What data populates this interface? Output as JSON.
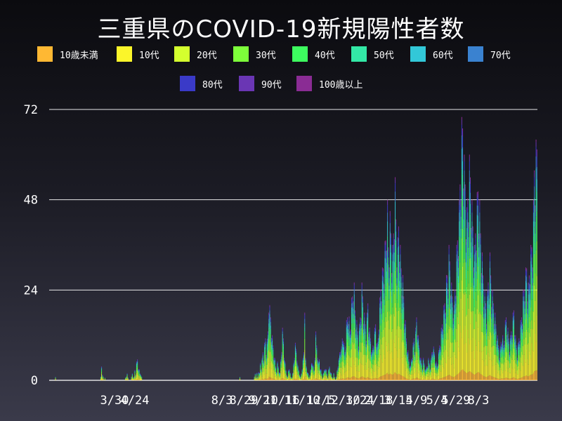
{
  "title": "三重県のCOVID-19新規陽性者数",
  "chart_data": {
    "type": "bar",
    "stacked": true,
    "title": "三重県のCOVID-19新規陽性者数",
    "xlabel": "",
    "ylabel": "",
    "ylim": [
      0,
      72
    ],
    "yticks": [
      0,
      24,
      48,
      72
    ],
    "grid": "horizontal",
    "legend_position": "top",
    "x_ticks": [
      "3/30",
      "4/24",
      "8/3",
      "8/29",
      "9/21",
      "10/16",
      "11/10",
      "12/5",
      "12/30",
      "1/24",
      "2/18",
      "3/15",
      "4/9",
      "5/4",
      "5/29",
      "8/3"
    ],
    "series": [
      {
        "name": "10歳未満",
        "color": "#ffb833"
      },
      {
        "name": "10代",
        "color": "#fbf52a"
      },
      {
        "name": "20代",
        "color": "#d4ff2e"
      },
      {
        "name": "30代",
        "color": "#7dff3a"
      },
      {
        "name": "40代",
        "color": "#3dfc5f"
      },
      {
        "name": "50代",
        "color": "#33e8a6"
      },
      {
        "name": "60代",
        "color": "#32c8d8"
      },
      {
        "name": "70代",
        "color": "#3a82d0"
      },
      {
        "name": "80代",
        "color": "#3a3ac8"
      },
      {
        "name": "90代",
        "color": "#6a36b4"
      },
      {
        "name": "100歳以上",
        "color": "#8a2c94"
      }
    ],
    "daily_totals": [
      0,
      0,
      0,
      0,
      0,
      0,
      0,
      1,
      0,
      0,
      0,
      0,
      0,
      0,
      0,
      0,
      0,
      0,
      0,
      0,
      0,
      0,
      0,
      0,
      0,
      0,
      0,
      0,
      0,
      0,
      0,
      0,
      0,
      0,
      0,
      0,
      0,
      0,
      0,
      0,
      0,
      0,
      0,
      0,
      0,
      0,
      0,
      0,
      0,
      0,
      0,
      0,
      0,
      0,
      0,
      0,
      0,
      0,
      0,
      0,
      1,
      4,
      2,
      1,
      0,
      1,
      0,
      0,
      0,
      0,
      0,
      0,
      0,
      0,
      0,
      0,
      0,
      0,
      0,
      0,
      0,
      0,
      0,
      0,
      0,
      0,
      0,
      0,
      0,
      1,
      1,
      2,
      1,
      0,
      0,
      0,
      1,
      2,
      1,
      1,
      3,
      2,
      5,
      6,
      4,
      3,
      2,
      2,
      1,
      0,
      0,
      0,
      0,
      0,
      0,
      0,
      0,
      0,
      0,
      0,
      0,
      0,
      0,
      0,
      0,
      0,
      0,
      0,
      0,
      0,
      0,
      0,
      0,
      0,
      0,
      0,
      0,
      0,
      0,
      0,
      0,
      0,
      0,
      0,
      0,
      0,
      0,
      0,
      0,
      0,
      0,
      0,
      0,
      0,
      0,
      0,
      0,
      0,
      0,
      0,
      0,
      0,
      0,
      0,
      0,
      0,
      0,
      0,
      0,
      0,
      0,
      0,
      0,
      0,
      0,
      0,
      0,
      0,
      0,
      0,
      0,
      0,
      0,
      0,
      0,
      0,
      0,
      0,
      0,
      0,
      0,
      0,
      0,
      0,
      0,
      0,
      0,
      0,
      0,
      0,
      0,
      0,
      0,
      0,
      0,
      0,
      0,
      0,
      0,
      0,
      0,
      0,
      0,
      0,
      0,
      0,
      0,
      0,
      0,
      0,
      0,
      0,
      0,
      1,
      0,
      0,
      0,
      0,
      0,
      0,
      0,
      0,
      0,
      0,
      0,
      0,
      0,
      0,
      0,
      0,
      1,
      2,
      1,
      2,
      1,
      3,
      2,
      5,
      4,
      6,
      8,
      7,
      10,
      12,
      9,
      11,
      14,
      24,
      20,
      18,
      15,
      12,
      10,
      8,
      6,
      4,
      3,
      5,
      4,
      3,
      2,
      6,
      10,
      14,
      12,
      8,
      5,
      3,
      2,
      1,
      3,
      4,
      2,
      1,
      1,
      2,
      5,
      8,
      10,
      9,
      7,
      4,
      3,
      2,
      1,
      2,
      4,
      6,
      8,
      24,
      6,
      4,
      3,
      2,
      1,
      2,
      3,
      5,
      6,
      4,
      3,
      8,
      13,
      10,
      8,
      5,
      6,
      4,
      3,
      2,
      1,
      2,
      3,
      4,
      3,
      2,
      1,
      3,
      4,
      3,
      2,
      1,
      1,
      2,
      1,
      0,
      1,
      3,
      5,
      6,
      8,
      10,
      9,
      12,
      14,
      10,
      8,
      12,
      16,
      18,
      20,
      17,
      14,
      18,
      22,
      24,
      28,
      26,
      20,
      18,
      16,
      14,
      12,
      15,
      18,
      22,
      26,
      24,
      20,
      18,
      16,
      14,
      18,
      22,
      17,
      14,
      12,
      10,
      8,
      10,
      12,
      14,
      16,
      13,
      10,
      12,
      18,
      22,
      26,
      28,
      30,
      32,
      34,
      37,
      40,
      46,
      48,
      38,
      40,
      45,
      42,
      38,
      36,
      42,
      50,
      54,
      46,
      40,
      38,
      44,
      42,
      36,
      32,
      30,
      28,
      24,
      20,
      16,
      12,
      10,
      8,
      6,
      5,
      4,
      6,
      8,
      10,
      12,
      10,
      14,
      18,
      16,
      12,
      10,
      8,
      6,
      5,
      4,
      6,
      5,
      4,
      3,
      4,
      5,
      6,
      5,
      4,
      6,
      8,
      10,
      9,
      8,
      6,
      5,
      4,
      6,
      8,
      10,
      12,
      14,
      16,
      18,
      20,
      22,
      24,
      28,
      30,
      32,
      36,
      34,
      30,
      26,
      24,
      22,
      20,
      26,
      30,
      36,
      40,
      44,
      48,
      56,
      64,
      70,
      72,
      68,
      60,
      56,
      50,
      46,
      52,
      56,
      60,
      58,
      54,
      48,
      44,
      40,
      36,
      42,
      46,
      50,
      54,
      52,
      48,
      42,
      38,
      34,
      30,
      26,
      24,
      22,
      20,
      24,
      28,
      32,
      34,
      30,
      26,
      24,
      22,
      20,
      18,
      16,
      14,
      12,
      10,
      8,
      9,
      11,
      13,
      12,
      10,
      14,
      16,
      18,
      16,
      14,
      12,
      10,
      12,
      14,
      16,
      18,
      20,
      16,
      12,
      10,
      8,
      10,
      12,
      14,
      16,
      18,
      20,
      24,
      26,
      28,
      30,
      32,
      28,
      26,
      30,
      34,
      36,
      38,
      40,
      48,
      60,
      62,
      64,
      66
    ]
  }
}
